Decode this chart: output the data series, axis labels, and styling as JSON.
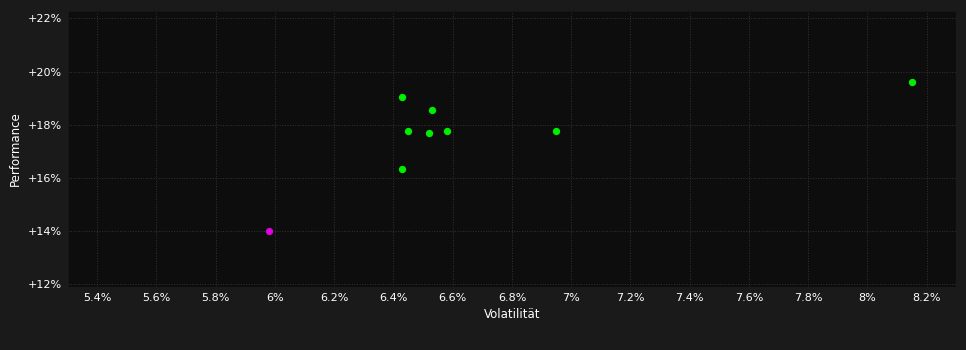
{
  "background_color": "#1a1a1a",
  "plot_bg_color": "#0d0d0d",
  "grid_color": "#333333",
  "text_color": "#ffffff",
  "xlabel": "Volatilität",
  "ylabel": "Performance",
  "xlim": [
    0.053,
    0.083
  ],
  "ylim": [
    0.119,
    0.223
  ],
  "xticks": [
    0.054,
    0.056,
    0.058,
    0.06,
    0.062,
    0.064,
    0.066,
    0.068,
    0.07,
    0.072,
    0.074,
    0.076,
    0.078,
    0.08,
    0.082
  ],
  "xtick_labels": [
    "5.4%",
    "5.6%",
    "5.8%",
    "6%",
    "6.2%",
    "6.4%",
    "6.6%",
    "6.8%",
    "7%",
    "7.2%",
    "7.4%",
    "7.6%",
    "7.8%",
    "8%",
    "8.2%"
  ],
  "yticks": [
    0.12,
    0.14,
    0.16,
    0.18,
    0.2,
    0.22
  ],
  "ytick_labels": [
    "+12%",
    "+14%",
    "+16%",
    "+18%",
    "+20%",
    "+22%"
  ],
  "green_points": [
    [
      0.0643,
      0.1905
    ],
    [
      0.0653,
      0.1855
    ],
    [
      0.0645,
      0.1775
    ],
    [
      0.0652,
      0.177
    ],
    [
      0.0658,
      0.1775
    ],
    [
      0.0643,
      0.1635
    ],
    [
      0.0695,
      0.1775
    ],
    [
      0.0815,
      0.196
    ]
  ],
  "magenta_points": [
    [
      0.0598,
      0.14
    ]
  ],
  "green_color": "#00ee00",
  "magenta_color": "#dd00dd",
  "marker_size": 28
}
